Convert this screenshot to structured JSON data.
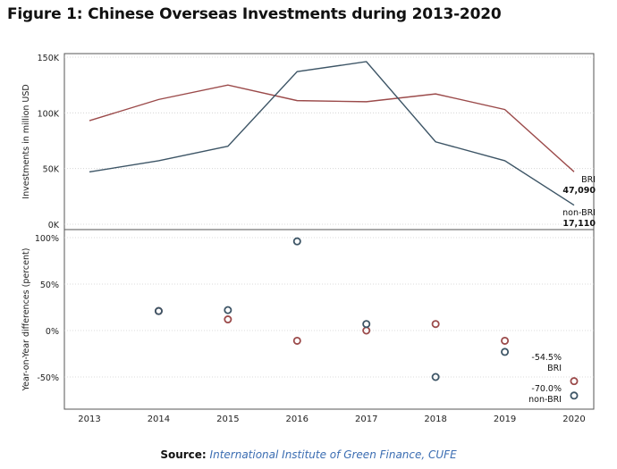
{
  "title": "Figure 1: Chinese Overseas Investments during 2013-2020",
  "source": {
    "label": "Source:",
    "text": "International Institute of Green Finance, CUFE"
  },
  "colors": {
    "bri": "#9b4a4a",
    "non_bri": "#3d5566",
    "grid": "#cfcfcf",
    "axis": "#555555"
  },
  "chart_data": [
    {
      "type": "line",
      "ylabel": "Investments in million USD",
      "x": [
        2013,
        2014,
        2015,
        2016,
        2017,
        2018,
        2019,
        2020
      ],
      "ylim": [
        0,
        150000
      ],
      "yticks": [
        0,
        50000,
        100000,
        150000
      ],
      "ytick_labels": [
        "0K",
        "50K",
        "100K",
        "150K"
      ],
      "grid": true,
      "series": [
        {
          "key": "bri",
          "values": [
            93000,
            112000,
            125000,
            111000,
            110000,
            117000,
            103000,
            47090
          ]
        },
        {
          "key": "non_bri",
          "values": [
            47000,
            57000,
            70000,
            137000,
            146000,
            74000,
            57000,
            17110
          ]
        }
      ],
      "annotations": [
        {
          "series": "bri",
          "lines": [
            "BRI",
            "47,090"
          ]
        },
        {
          "series": "non_bri",
          "lines": [
            "non-BRI",
            "17,110"
          ]
        }
      ]
    },
    {
      "type": "scatter",
      "ylabel": "Year-on-Year differences (percent)",
      "x": [
        2014,
        2015,
        2016,
        2017,
        2018,
        2019,
        2020
      ],
      "xticks": [
        2013,
        2014,
        2015,
        2016,
        2017,
        2018,
        2019,
        2020
      ],
      "ylim": [
        -67,
        110
      ],
      "yticks": [
        -50,
        0,
        50,
        100
      ],
      "ytick_labels": [
        "-50%",
        "0%",
        "50%",
        "100%"
      ],
      "grid": true,
      "series": [
        {
          "key": "bri",
          "values": [
            21,
            12,
            -11,
            0,
            7,
            -11,
            -54.5
          ]
        },
        {
          "key": "non_bri",
          "values": [
            21,
            22,
            96,
            7,
            -50,
            -23,
            -70.0
          ]
        }
      ],
      "annotations": [
        {
          "series": "bri",
          "lines": [
            "-54.5%",
            "BRI"
          ]
        },
        {
          "series": "non_bri",
          "lines": [
            "-70.0%",
            "non-BRI"
          ]
        }
      ]
    }
  ]
}
